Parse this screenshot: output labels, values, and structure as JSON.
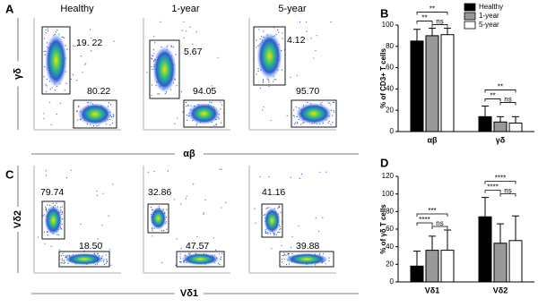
{
  "panel_labels": [
    "A",
    "B",
    "C",
    "D"
  ],
  "flow": {
    "columns": [
      "Healthy",
      "1-year",
      "5-year"
    ],
    "rows": [
      {
        "y_label": "γδ",
        "x_label": "αβ",
        "gates": [
          [
            "19. 22",
            "80.22"
          ],
          [
            "5.67",
            "94.05"
          ],
          [
            "4.12",
            "95.70"
          ]
        ]
      },
      {
        "y_label": "Vδ2",
        "x_label": "Vδ1",
        "gates": [
          [
            "79.74",
            "18.50"
          ],
          [
            "32.86",
            "47.57"
          ],
          [
            "41.16",
            "39.88"
          ]
        ]
      }
    ]
  },
  "chart_data": [
    {
      "type": "bar",
      "y_label": "% of CD3+ T cells",
      "categories": [
        "αβ",
        "γδ"
      ],
      "series": [
        {
          "name": "Healthy",
          "color": "#000000",
          "values": [
            85,
            14
          ],
          "errors": [
            11,
            10
          ]
        },
        {
          "name": "1-year",
          "color": "#999999",
          "values": [
            90,
            9
          ],
          "errors": [
            7,
            5
          ]
        },
        {
          "name": "5-year",
          "color": "#ffffff",
          "values": [
            91,
            8
          ],
          "errors": [
            6,
            6
          ]
        }
      ],
      "annotations": [
        [
          "**",
          "**",
          "ns"
        ],
        [
          "**",
          "**",
          "ns"
        ]
      ],
      "ylim": [
        0,
        100
      ],
      "yticks": [
        0,
        20,
        40,
        60,
        80,
        100
      ],
      "legend": "upper right"
    },
    {
      "type": "bar",
      "y_label": "% of γδ T cells",
      "categories": [
        "Vδ1",
        "Vδ2"
      ],
      "series": [
        {
          "name": "Healthy",
          "color": "#000000",
          "values": [
            18,
            74
          ],
          "errors": [
            17,
            22
          ]
        },
        {
          "name": "1-year",
          "color": "#999999",
          "values": [
            36,
            44
          ],
          "errors": [
            16,
            22
          ]
        },
        {
          "name": "5-year",
          "color": "#ffffff",
          "values": [
            36,
            47
          ],
          "errors": [
            23,
            28
          ]
        }
      ],
      "annotations": [
        [
          "****",
          "***",
          "ns"
        ],
        [
          "****",
          "****",
          "ns"
        ]
      ],
      "ylim": [
        0,
        120
      ],
      "yticks": [
        0,
        20,
        40,
        60,
        80,
        100,
        120
      ]
    }
  ]
}
